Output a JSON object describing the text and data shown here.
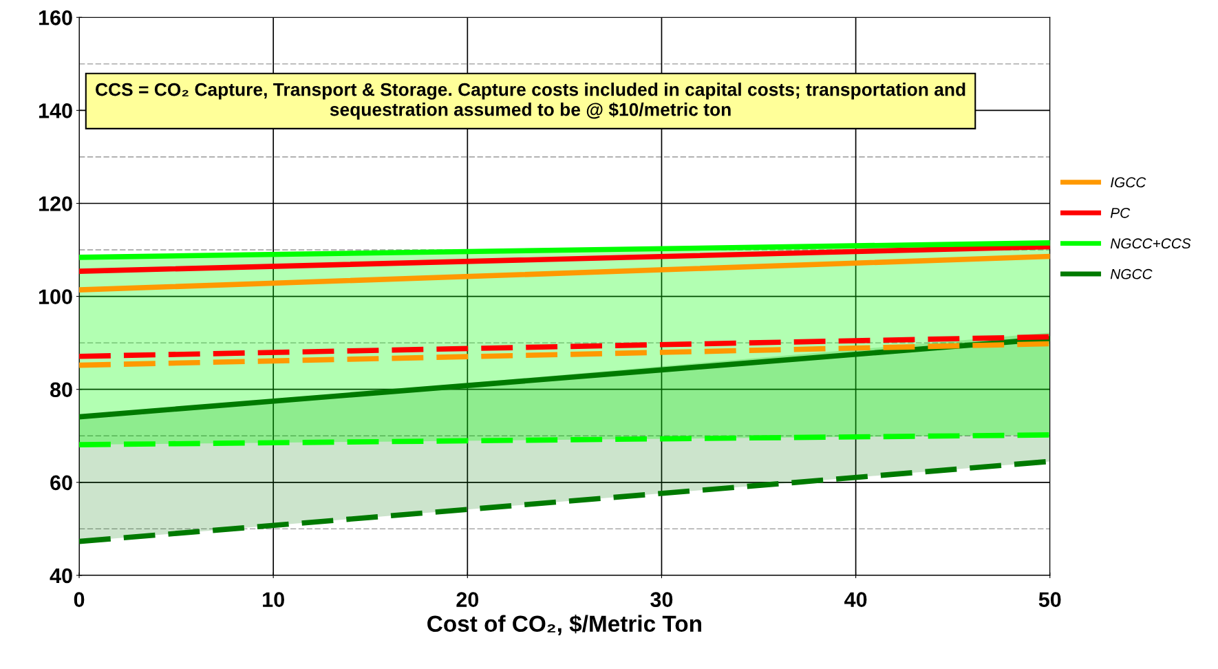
{
  "chart_data": {
    "type": "line",
    "xlabel": "Cost of CO₂, $/Metric Ton",
    "x": [
      0,
      50
    ],
    "xlim": [
      0,
      50
    ],
    "xticks": [
      0,
      10,
      20,
      30,
      40,
      50
    ],
    "ylim": [
      40,
      160
    ],
    "yticks": [
      40,
      60,
      80,
      100,
      120,
      140,
      160
    ],
    "grid": true,
    "legend": "right",
    "marker": "none",
    "annotations": [
      "CCS = CO₂ Capture, Transport & Storage. Capture costs included in capital costs; transportation and sequestration assumed to be @ $10/metric ton"
    ],
    "ref_lines": [
      {
        "axis": "y",
        "value": 50,
        "color": "#999999",
        "line_style": "dashed"
      },
      {
        "axis": "y",
        "value": 70,
        "color": "#999999",
        "line_style": "dashed"
      },
      {
        "axis": "y",
        "value": 90,
        "color": "#999999",
        "line_style": "dashed"
      },
      {
        "axis": "y",
        "value": 110,
        "color": "#999999",
        "line_style": "dashed"
      },
      {
        "axis": "y",
        "value": 130,
        "color": "#999999",
        "line_style": "dashed"
      },
      {
        "axis": "y",
        "value": 150,
        "color": "#999999",
        "line_style": "dashed"
      }
    ],
    "series": [
      {
        "name": "IGCC",
        "color": "#ff9900",
        "values": [
          101.4,
          108.6
        ],
        "line_style": "solid"
      },
      {
        "name": "PC",
        "color": "#ff0000",
        "values": [
          105.4,
          110.7
        ],
        "line_style": "solid"
      },
      {
        "name": "NGCC+CCS",
        "color": "#00ff00",
        "values": [
          108.4,
          111.5
        ],
        "lower": [
          68.1,
          70.2
        ],
        "upper": [
          108.4,
          111
        ],
        "line_style": "solid"
      },
      {
        "name": "NGCC",
        "color": "#007a00",
        "values": [
          74.1,
          90.9
        ],
        "lower": [
          47.3,
          64.5
        ],
        "upper": [
          74.1,
          92.2
        ],
        "line_style": "solid"
      },
      {
        "color": "#ff9900",
        "values": [
          85.2,
          89.8
        ],
        "line_style": "dashed"
      },
      {
        "color": "#ff0000",
        "values": [
          87.1,
          91.3
        ],
        "line_style": "dashed"
      },
      {
        "color": "#00ff00",
        "values": [
          68.1,
          70.2
        ],
        "line_style": "dashed"
      },
      {
        "color": "#007a00",
        "values": [
          47.3,
          64.5
        ],
        "line_style": "dashed"
      }
    ]
  }
}
